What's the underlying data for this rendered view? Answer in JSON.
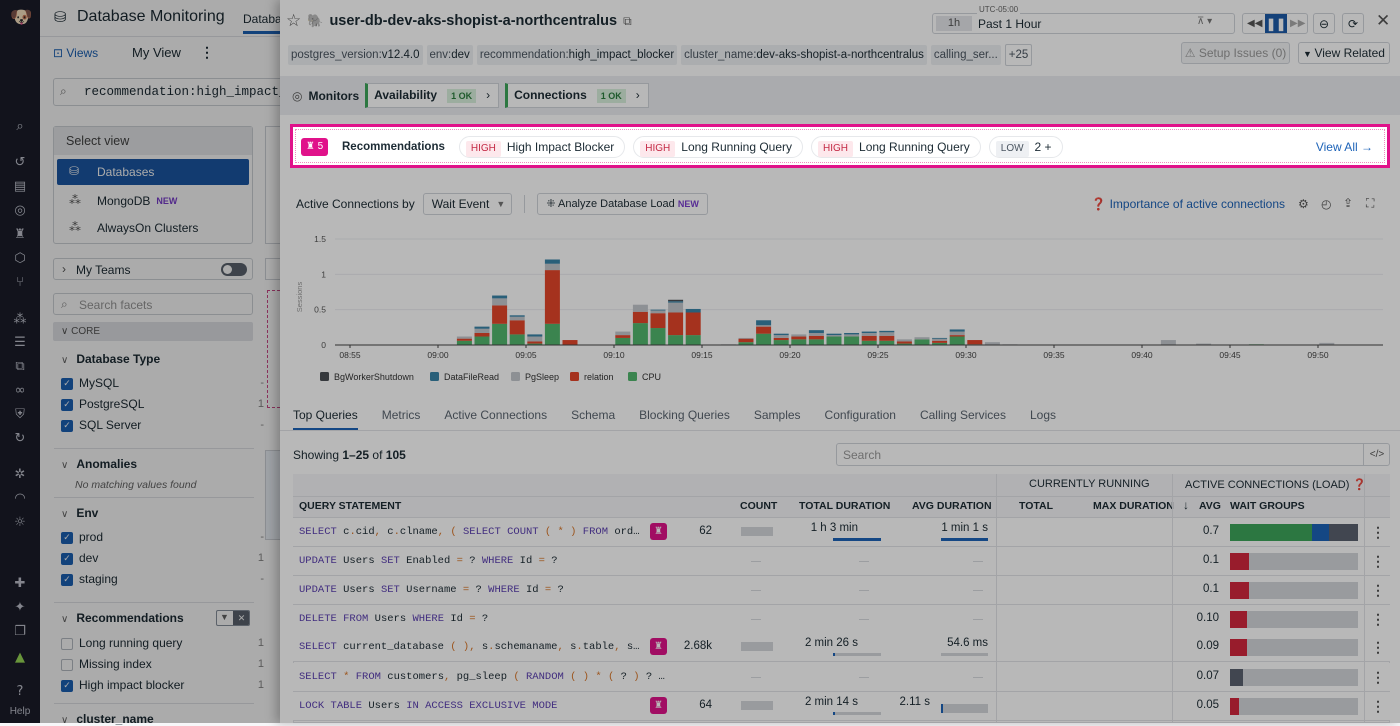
{
  "nav": {
    "help_label": "Help"
  },
  "left": {
    "app_title": "Database Monitoring",
    "tab_partial": "Databas",
    "views_label": "Views",
    "my_view_label": "My View",
    "search_value": "recommendation:high_impact_b",
    "select_view": {
      "title": "Select view",
      "items": [
        {
          "label": "Databases",
          "selected": true
        },
        {
          "label": "MongoDB",
          "badge": "NEW"
        },
        {
          "label": "AlwaysOn Clusters"
        }
      ]
    },
    "my_teams_label": "My Teams",
    "facet_search_placeholder": "Search facets",
    "core_label": "CORE",
    "database_type": {
      "title": "Database Type",
      "items": [
        {
          "label": "MySQL",
          "count": "-",
          "checked": true
        },
        {
          "label": "PostgreSQL",
          "count": "1",
          "checked": true
        },
        {
          "label": "SQL Server",
          "count": "-",
          "checked": true
        }
      ]
    },
    "anomalies": {
      "title": "Anomalies",
      "empty": "No matching values found"
    },
    "env": {
      "title": "Env",
      "items": [
        {
          "label": "prod",
          "count": "-",
          "checked": true
        },
        {
          "label": "dev",
          "count": "1",
          "checked": true
        },
        {
          "label": "staging",
          "count": "-",
          "checked": true
        }
      ]
    },
    "recommendations": {
      "title": "Recommendations",
      "items": [
        {
          "label": "Long running query",
          "count": "1",
          "checked": false
        },
        {
          "label": "Missing index",
          "count": "1",
          "checked": false
        },
        {
          "label": "High impact blocker",
          "count": "1",
          "checked": true
        }
      ]
    },
    "next_facet": "cluster_name"
  },
  "panel": {
    "title": "user-db-dev-aks-shopist-a-northcentralus",
    "time": {
      "timezone": "UTC-05:00",
      "short": "1h",
      "label": "Past 1 Hour"
    },
    "tags": [
      {
        "k": "postgres_version:",
        "v": "v12.4.0"
      },
      {
        "k": "env:",
        "v": "dev"
      },
      {
        "k": "recommendation:",
        "v": "high_impact_blocker"
      },
      {
        "k": "cluster_name:",
        "v": "dev-aks-shopist-a-northcentralus"
      },
      {
        "k": "calling_ser...",
        "v": ""
      }
    ],
    "tags_more": "+25",
    "setup_issues": "Setup Issues (0)",
    "view_related": "View Related",
    "monitors": {
      "label": "Monitors",
      "items": [
        {
          "label": "Availability",
          "status": "1 OK"
        },
        {
          "label": "Connections",
          "status": "1 OK"
        }
      ]
    },
    "recommendations": {
      "count": "5",
      "label": "Recommendations",
      "items": [
        {
          "severity": "HIGH",
          "label": "High Impact Blocker"
        },
        {
          "severity": "HIGH",
          "label": "Long Running Query"
        },
        {
          "severity": "HIGH",
          "label": "Long Running Query"
        },
        {
          "severity": "LOW",
          "label": "2 +"
        }
      ],
      "view_all": "View All"
    },
    "controls": {
      "by_label": "Active Connections by",
      "group_select": "Wait Event",
      "analyze_label": "Analyze Database Load",
      "analyze_badge": "NEW",
      "help_link": "Importance of active connections"
    },
    "tabs": [
      "Top Queries",
      "Metrics",
      "Active Connections",
      "Schema",
      "Blocking Queries",
      "Samples",
      "Configuration",
      "Calling Services",
      "Logs"
    ],
    "active_tab": "Top Queries",
    "showing": {
      "prefix": "Showing ",
      "range": "1–25",
      "of": " of ",
      "total": "105"
    },
    "search_placeholder": "Search",
    "table": {
      "group_headers": {
        "running": "CURRENTLY RUNNING",
        "load": "ACTIVE CONNECTIONS (LOAD)"
      },
      "columns": [
        "QUERY STATEMENT",
        "COUNT",
        "TOTAL DURATION",
        "AVG DURATION",
        "TOTAL",
        "MAX DURATION",
        "AVG",
        "WAIT GROUPS"
      ],
      "rows": [
        {
          "query": "SELECT c.cid, c.clname, ( SELECT COUNT ( * ) FROM ord…",
          "rec": true,
          "count": "62",
          "total_duration": "1 h 3 min",
          "total_fill": 1.0,
          "avg_duration": "1 min 1 s",
          "avg_fill": 1.0,
          "avg": "0.7",
          "wait": [
            {
              "c": "#3da65a",
              "f": 0.64
            },
            {
              "c": "#1d63b8",
              "f": 0.13
            },
            {
              "c": "#5b6270",
              "f": 0.23
            }
          ]
        },
        {
          "query": "UPDATE Users SET Enabled = ? WHERE Id = ?",
          "rec": false,
          "count": "",
          "avg": "0.1",
          "wait": [
            {
              "c": "#d3273e",
              "f": 0.15
            }
          ]
        },
        {
          "query": "UPDATE Users SET Username = ? WHERE Id = ?",
          "rec": false,
          "count": "",
          "avg": "0.1",
          "wait": [
            {
              "c": "#d3273e",
              "f": 0.15
            }
          ]
        },
        {
          "query": "DELETE FROM Users WHERE Id = ?",
          "rec": false,
          "count": "",
          "avg": "0.10",
          "wait": [
            {
              "c": "#d3273e",
              "f": 0.13
            }
          ]
        },
        {
          "query": "SELECT current_database ( ), s.schemaname, s.table, s…",
          "rec": true,
          "count": "2.68k",
          "total_duration": "2 min 26 s",
          "total_fill": 0.04,
          "avg_duration": "54.6 ms",
          "avg_fill": 0.0,
          "avg": "0.09",
          "wait": [
            {
              "c": "#d3273e",
              "f": 0.13
            }
          ]
        },
        {
          "query": "SELECT * FROM customers, pg_sleep ( RANDOM ( ) * ( ? ) ? …",
          "rec": false,
          "count": "",
          "avg": "0.07",
          "wait": [
            {
              "c": "#5b6270",
              "f": 0.1
            }
          ]
        },
        {
          "query": "LOCK TABLE Users IN ACCESS EXCLUSIVE MODE",
          "rec": true,
          "count": "64",
          "total_duration": "2 min 14 s",
          "total_fill": 0.04,
          "avg_duration": "2.11 s",
          "avg_fill": 0.05,
          "avg": "0.05",
          "wait": [
            {
              "c": "#d3273e",
              "f": 0.07
            }
          ]
        }
      ]
    }
  },
  "colors": {
    "accent": "#1d63b8",
    "highlight": "#e0128a",
    "ok": "#3da65a"
  },
  "chart_data": {
    "type": "bar",
    "stacked": true,
    "ylabel": "Sessions",
    "ylim": [
      0,
      1.5
    ],
    "yticks": [
      "0",
      "0.5",
      "1",
      "1.5"
    ],
    "xticks": [
      "08:55",
      "09:00",
      "09:05",
      "09:10",
      "09:15",
      "09:20",
      "09:25",
      "09:30",
      "09:35",
      "09:40",
      "09:45",
      "09:50"
    ],
    "grid": true,
    "legend_position": "bottom-left",
    "series": [
      {
        "name": "BgWorkerShutdown",
        "color": "#4b4f55"
      },
      {
        "name": "DataFileRead",
        "color": "#3a84a8"
      },
      {
        "name": "PgSleep",
        "color": "#c4c8ce"
      },
      {
        "name": "relation",
        "color": "#e5462a"
      },
      {
        "name": "CPU",
        "color": "#52b86e"
      }
    ],
    "bars": [
      {
        "t": "09:01",
        "CPU": 0.06,
        "relation": 0.03,
        "PgSleep": 0.03
      },
      {
        "t": "09:02",
        "CPU": 0.12,
        "relation": 0.05,
        "PgSleep": 0.06,
        "DataFileRead": 0.03
      },
      {
        "t": "09:03",
        "CPU": 0.3,
        "relation": 0.26,
        "PgSleep": 0.1,
        "DataFileRead": 0.04
      },
      {
        "t": "09:04",
        "CPU": 0.15,
        "relation": 0.2,
        "PgSleep": 0.05,
        "DataFileRead": 0.02
      },
      {
        "t": "09:05",
        "CPU": 0.02,
        "relation": 0.03,
        "PgSleep": 0.07,
        "DataFileRead": 0.03
      },
      {
        "t": "09:06",
        "CPU": 0.3,
        "relation": 0.76,
        "PgSleep": 0.09,
        "DataFileRead": 0.06
      },
      {
        "t": "09:07",
        "relation": 0.07
      },
      {
        "t": "09:10",
        "CPU": 0.1,
        "relation": 0.04,
        "PgSleep": 0.05
      },
      {
        "t": "09:11",
        "CPU": 0.31,
        "relation": 0.16,
        "PgSleep": 0.1
      },
      {
        "t": "09:12",
        "CPU": 0.24,
        "relation": 0.21,
        "PgSleep": 0.04,
        "DataFileRead": 0.01
      },
      {
        "t": "09:13",
        "CPU": 0.14,
        "relation": 0.32,
        "PgSleep": 0.14,
        "DataFileRead": 0.02,
        "BgWorkerShutdown": 0.02
      },
      {
        "t": "09:14",
        "CPU": 0.14,
        "relation": 0.32,
        "DataFileRead": 0.05
      },
      {
        "t": "09:16",
        "PgSleep": 0.01
      },
      {
        "t": "09:17",
        "CPU": 0.04,
        "relation": 0.05,
        "PgSleep": 0.01
      },
      {
        "t": "09:18",
        "CPU": 0.16,
        "relation": 0.1,
        "PgSleep": 0.02,
        "DataFileRead": 0.07
      },
      {
        "t": "09:19",
        "CPU": 0.07,
        "relation": 0.03,
        "PgSleep": 0.04,
        "DataFileRead": 0.02
      },
      {
        "t": "09:20",
        "CPU": 0.08,
        "relation": 0.04,
        "PgSleep": 0.03
      },
      {
        "t": "09:21",
        "CPU": 0.08,
        "relation": 0.05,
        "PgSleep": 0.04,
        "DataFileRead": 0.04
      },
      {
        "t": "09:22",
        "CPU": 0.12,
        "PgSleep": 0.02,
        "DataFileRead": 0.02
      },
      {
        "t": "09:23",
        "CPU": 0.12,
        "PgSleep": 0.03,
        "DataFileRead": 0.02
      },
      {
        "t": "09:24",
        "CPU": 0.06,
        "relation": 0.07,
        "PgSleep": 0.04,
        "DataFileRead": 0.02
      },
      {
        "t": "09:25",
        "CPU": 0.06,
        "relation": 0.07,
        "PgSleep": 0.05,
        "DataFileRead": 0.02
      },
      {
        "t": "09:26",
        "CPU": 0.02,
        "relation": 0.03,
        "PgSleep": 0.03
      },
      {
        "t": "09:27",
        "CPU": 0.08,
        "PgSleep": 0.03
      },
      {
        "t": "09:28",
        "CPU": 0.03,
        "relation": 0.03,
        "PgSleep": 0.03,
        "DataFileRead": 0.01
      },
      {
        "t": "09:29",
        "CPU": 0.12,
        "relation": 0.02,
        "PgSleep": 0.05,
        "DataFileRead": 0.03
      },
      {
        "t": "09:30",
        "CPU": 0.01,
        "relation": 0.06
      },
      {
        "t": "09:31",
        "PgSleep": 0.04
      },
      {
        "t": "09:32",
        "PgSleep": 0.01
      },
      {
        "t": "09:41",
        "PgSleep": 0.07
      },
      {
        "t": "09:43",
        "PgSleep": 0.02
      },
      {
        "t": "09:46",
        "CPU": 0.01
      },
      {
        "t": "09:50",
        "PgSleep": 0.03
      }
    ]
  }
}
